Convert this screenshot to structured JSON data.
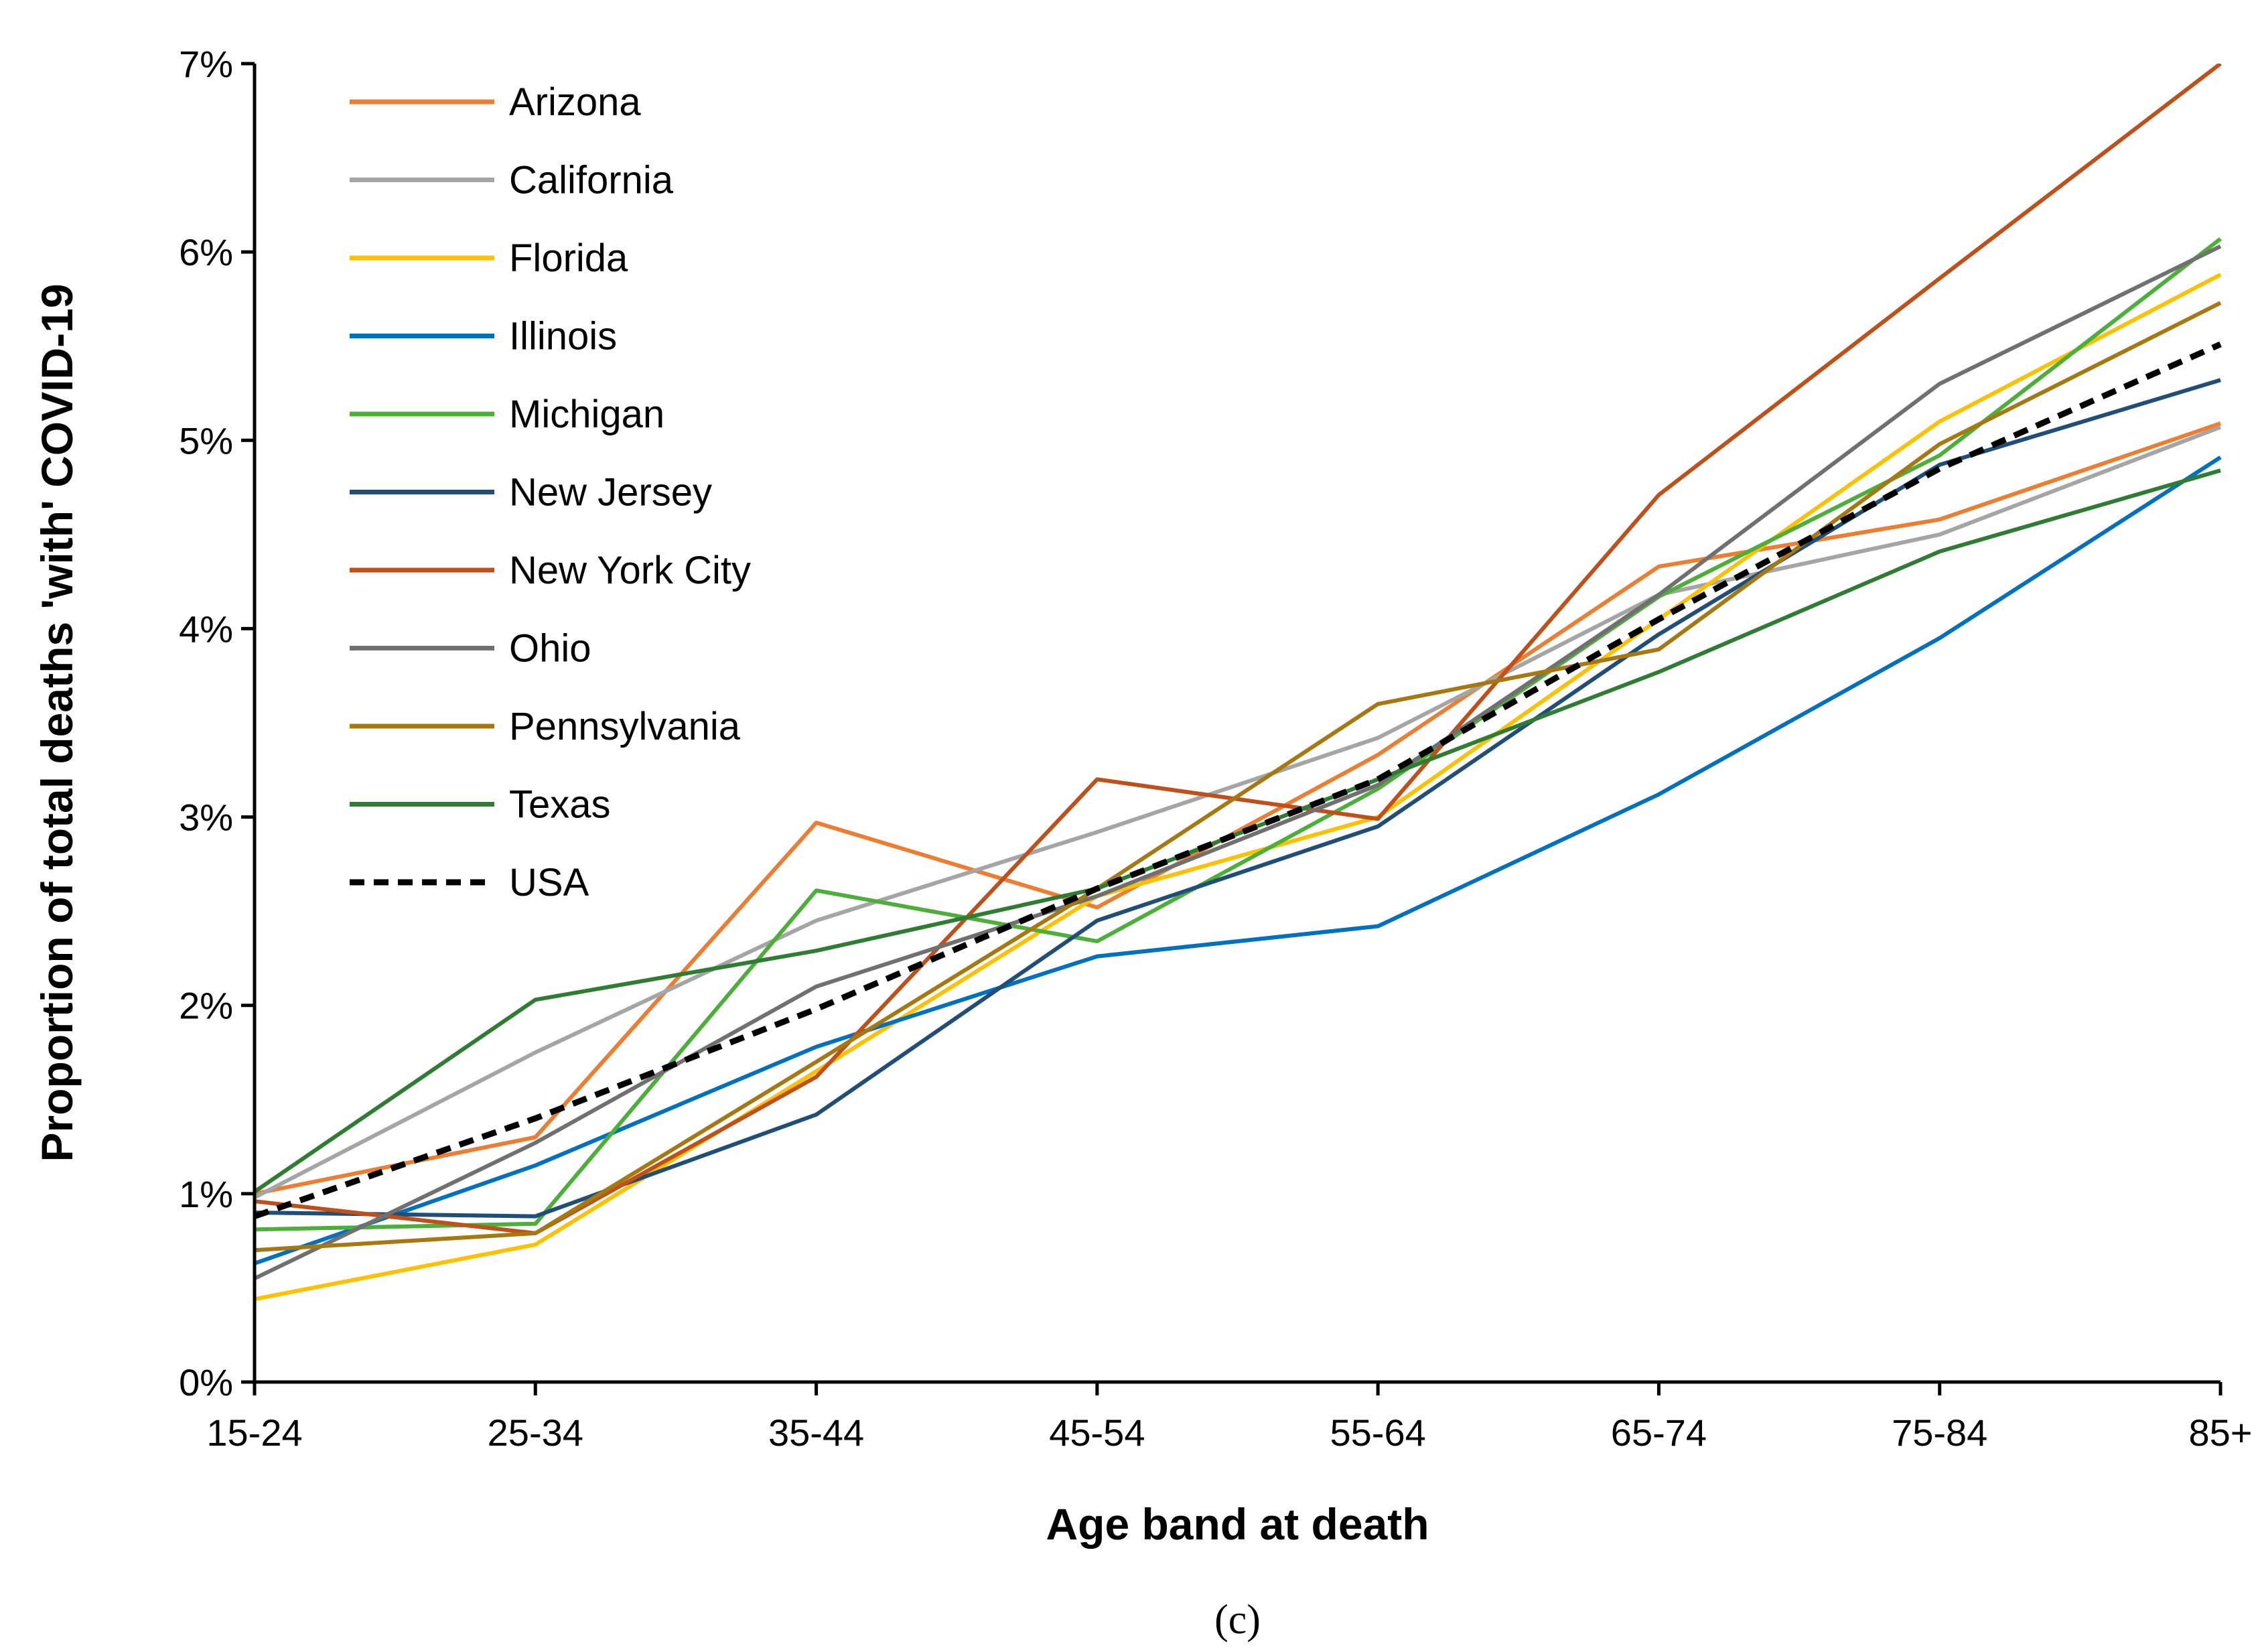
{
  "chart_data": {
    "type": "line",
    "xlabel": "Age band at death",
    "ylabel": "Proportion of total deaths 'with' COVID-19",
    "caption": "(c)",
    "categories": [
      "15-24",
      "25-34",
      "35-44",
      "45-54",
      "55-64",
      "65-74",
      "75-84",
      "85+"
    ],
    "ylim": [
      0,
      7
    ],
    "yticks": [
      0,
      1,
      2,
      3,
      4,
      5,
      6,
      7
    ],
    "ytick_labels": [
      "0%",
      "1%",
      "2%",
      "3%",
      "4%",
      "5%",
      "6%",
      "7%"
    ],
    "grid": false,
    "legend_position": "top-left",
    "series": [
      {
        "name": "Arizona",
        "color": "#ED7D31",
        "dash": "solid",
        "values": [
          1.0,
          1.3,
          2.97,
          2.52,
          3.33,
          4.33,
          4.58,
          5.09
        ]
      },
      {
        "name": "California",
        "color": "#A5A5A5",
        "dash": "solid",
        "values": [
          0.98,
          1.75,
          2.45,
          2.92,
          3.42,
          4.18,
          4.5,
          5.07
        ]
      },
      {
        "name": "Florida",
        "color": "#FFC000",
        "dash": "solid",
        "values": [
          0.44,
          0.73,
          1.65,
          2.58,
          3.0,
          4.05,
          5.1,
          5.88
        ]
      },
      {
        "name": "Illinois",
        "color": "#0070C0",
        "dash": "solid",
        "values": [
          0.63,
          1.15,
          1.78,
          2.26,
          2.42,
          3.12,
          3.95,
          4.91
        ]
      },
      {
        "name": "Michigan",
        "color": "#4CAF3A",
        "dash": "solid",
        "values": [
          0.81,
          0.84,
          2.61,
          2.34,
          3.15,
          4.17,
          4.92,
          6.07
        ]
      },
      {
        "name": "New Jersey",
        "color": "#1F4E79",
        "dash": "solid",
        "values": [
          0.9,
          0.88,
          1.42,
          2.45,
          2.95,
          3.97,
          4.87,
          5.32
        ]
      },
      {
        "name": "New York City",
        "color": "#C0501A",
        "dash": "solid",
        "values": [
          0.96,
          0.79,
          1.62,
          3.2,
          2.99,
          4.71,
          5.86,
          7.0
        ]
      },
      {
        "name": "Ohio",
        "color": "#707070",
        "dash": "solid",
        "values": [
          0.55,
          1.27,
          2.1,
          2.58,
          3.17,
          4.18,
          5.3,
          6.03
        ]
      },
      {
        "name": "Pennsylvania",
        "color": "#A87810",
        "dash": "solid",
        "values": [
          0.7,
          0.79,
          1.7,
          2.62,
          3.6,
          3.89,
          4.98,
          5.73
        ]
      },
      {
        "name": "Texas",
        "color": "#2E7D32",
        "dash": "solid",
        "values": [
          1.01,
          2.03,
          2.29,
          2.62,
          3.2,
          3.77,
          4.41,
          4.84
        ]
      },
      {
        "name": "USA",
        "color": "#000000",
        "dash": "dashed",
        "values": [
          0.88,
          1.4,
          1.98,
          2.62,
          3.2,
          4.05,
          4.85,
          5.51
        ]
      }
    ]
  }
}
